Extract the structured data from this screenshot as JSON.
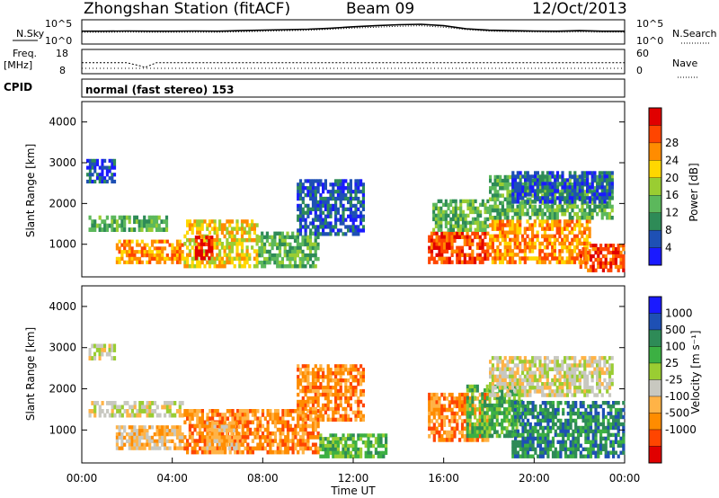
{
  "header": {
    "station": "Zhongshan Station (fitACF)",
    "beam": "Beam 09",
    "date": "12/Oct/2013"
  },
  "noise_panel": {
    "left_label": "N.Sky",
    "right_label": "N.Search",
    "left_ticks": [
      "10^5",
      "10^0"
    ],
    "right_ticks": [
      "10^5",
      "10^0"
    ]
  },
  "freq_panel": {
    "left_label_1": "Freq.",
    "left_label_2": "[MHz]",
    "right_label": "Nave",
    "left_ticks": [
      "18",
      "8"
    ],
    "right_ticks": [
      "60",
      "0"
    ]
  },
  "cpid": {
    "label": "CPID",
    "value": "normal (fast stereo) 153"
  },
  "colors": {
    "power_scale": [
      "#1a1aff",
      "#1e50b4",
      "#2e8b57",
      "#5cb85c",
      "#9acd32",
      "#ffd700",
      "#ff8c00",
      "#ff4500",
      "#e00000"
    ],
    "velocity_scale": [
      "#e00000",
      "#ff4500",
      "#ff8c00",
      "#ffb347",
      "#c8c8c0",
      "#9acd32",
      "#3cb043",
      "#2e8b57",
      "#1e50b4",
      "#1a1aff"
    ]
  },
  "chart_data": [
    {
      "type": "line",
      "name": "noise",
      "series": [
        {
          "name": "N.Sky",
          "x_hours": [
            0,
            1,
            2,
            3,
            4,
            5,
            6,
            7,
            8,
            9,
            10,
            11,
            12,
            13,
            14,
            15,
            16,
            17,
            18,
            19,
            20,
            21,
            22,
            23,
            24
          ],
          "values": [
            0.3,
            0.3,
            0.32,
            0.3,
            0.3,
            0.32,
            0.3,
            0.35,
            0.4,
            0.45,
            0.5,
            0.6,
            0.75,
            0.85,
            0.95,
            1.0,
            0.85,
            0.55,
            0.4,
            0.35,
            0.32,
            0.3,
            0.35,
            0.3,
            0.3
          ]
        },
        {
          "name": "N.Search",
          "x_hours": [
            0,
            1,
            2,
            3,
            4,
            5,
            6,
            7,
            8,
            9,
            10,
            11,
            12,
            13,
            14,
            15,
            16,
            17,
            18,
            19,
            20,
            21,
            22,
            23,
            24
          ],
          "values": [
            0.2,
            0.2,
            0.22,
            0.2,
            0.2,
            0.2,
            0.2,
            0.25,
            0.3,
            0.35,
            0.4,
            0.5,
            0.62,
            0.7,
            0.8,
            0.85,
            0.7,
            0.45,
            0.3,
            0.25,
            0.22,
            0.2,
            0.22,
            0.2,
            0.2
          ]
        }
      ],
      "ylabel": "N.Sky"
    },
    {
      "type": "line",
      "name": "frequency",
      "series": [
        {
          "name": "Freq",
          "x_hours": [
            0,
            2,
            2.6,
            2.8,
            3,
            3.3,
            24
          ],
          "values": [
            12.5,
            12.5,
            11.2,
            10.6,
            11.4,
            12.5,
            12.5
          ]
        },
        {
          "name": "Nave",
          "x_hours": [
            0,
            24
          ],
          "values": [
            10,
            10
          ]
        }
      ],
      "ylim": [
        8,
        18
      ]
    },
    {
      "type": "heatmap",
      "name": "power",
      "xlabel": "",
      "ylabel": "Slant Range [km]",
      "xlim": [
        0,
        24
      ],
      "ylim": [
        200,
        4500
      ],
      "y_ticks": [
        1000,
        2000,
        3000,
        4000
      ],
      "colorbar_label": "Power [dB]",
      "colorbar_ticks": [
        4,
        8,
        12,
        16,
        20,
        24,
        28
      ],
      "regions": [
        {
          "t0": 0.3,
          "t1": 3.8,
          "r0": 1300,
          "r1": 1700,
          "level": 3
        },
        {
          "t0": 1.5,
          "t1": 4.5,
          "r0": 500,
          "r1": 1100,
          "level": 6
        },
        {
          "t0": 4.5,
          "t1": 7.8,
          "r0": 400,
          "r1": 1600,
          "level": 5
        },
        {
          "t0": 5.0,
          "t1": 5.8,
          "r0": 600,
          "r1": 1200,
          "level": 8
        },
        {
          "t0": 7.8,
          "t1": 10.5,
          "r0": 400,
          "r1": 1300,
          "level": 3
        },
        {
          "t0": 0.2,
          "t1": 1.5,
          "r0": 2500,
          "r1": 3100,
          "level": 1
        },
        {
          "t0": 9.5,
          "t1": 12.5,
          "r0": 1200,
          "r1": 2600,
          "level": 1
        },
        {
          "t0": 15.3,
          "t1": 18.0,
          "r0": 500,
          "r1": 1300,
          "level": 7
        },
        {
          "t0": 15.5,
          "t1": 18.0,
          "r0": 1300,
          "r1": 2100,
          "level": 3
        },
        {
          "t0": 18.0,
          "t1": 22.5,
          "r0": 500,
          "r1": 1600,
          "level": 6
        },
        {
          "t0": 18.0,
          "t1": 23.5,
          "r0": 1600,
          "r1": 2700,
          "level": 3
        },
        {
          "t0": 19.0,
          "t1": 23.5,
          "r0": 2000,
          "r1": 2800,
          "level": 1
        },
        {
          "t0": 22.0,
          "t1": 24.0,
          "r0": 300,
          "r1": 1000,
          "level": 7
        }
      ]
    },
    {
      "type": "heatmap",
      "name": "velocity",
      "xlabel": "Time UT",
      "ylabel": "Slant Range [km]",
      "xlim": [
        0,
        24
      ],
      "ylim": [
        200,
        4500
      ],
      "x_ticks": [
        "00:00",
        "04:00",
        "08:00",
        "12:00",
        "16:00",
        "20:00",
        "00:00"
      ],
      "y_ticks": [
        1000,
        2000,
        3000,
        4000
      ],
      "colorbar_label": "Velocity [m s⁻¹]",
      "colorbar_ticks": [
        1000,
        500,
        100,
        25,
        -25,
        -100,
        -500,
        -1000
      ],
      "regions": [
        {
          "t0": 0.3,
          "t1": 4.5,
          "r0": 1300,
          "r1": 1700,
          "level": 4
        },
        {
          "t0": 0.3,
          "t1": 1.5,
          "r0": 2700,
          "r1": 3100,
          "level": 4
        },
        {
          "t0": 1.5,
          "t1": 4.5,
          "r0": 500,
          "r1": 1100,
          "level": 3
        },
        {
          "t0": 4.5,
          "t1": 10.5,
          "r0": 400,
          "r1": 1500,
          "level": 2
        },
        {
          "t0": 5.5,
          "t1": 7.0,
          "r0": 500,
          "r1": 1200,
          "level": 3
        },
        {
          "t0": 9.5,
          "t1": 12.5,
          "r0": 1200,
          "r1": 2600,
          "level": 2
        },
        {
          "t0": 10.5,
          "t1": 13.5,
          "r0": 300,
          "r1": 900,
          "level": 6
        },
        {
          "t0": 15.3,
          "t1": 18.0,
          "r0": 700,
          "r1": 1900,
          "level": 2
        },
        {
          "t0": 17.0,
          "t1": 19.5,
          "r0": 800,
          "r1": 2100,
          "level": 6
        },
        {
          "t0": 19.0,
          "t1": 24.0,
          "r0": 300,
          "r1": 1700,
          "level": 7
        },
        {
          "t0": 18.0,
          "t1": 23.5,
          "r0": 1800,
          "r1": 2800,
          "level": 4
        }
      ]
    }
  ]
}
